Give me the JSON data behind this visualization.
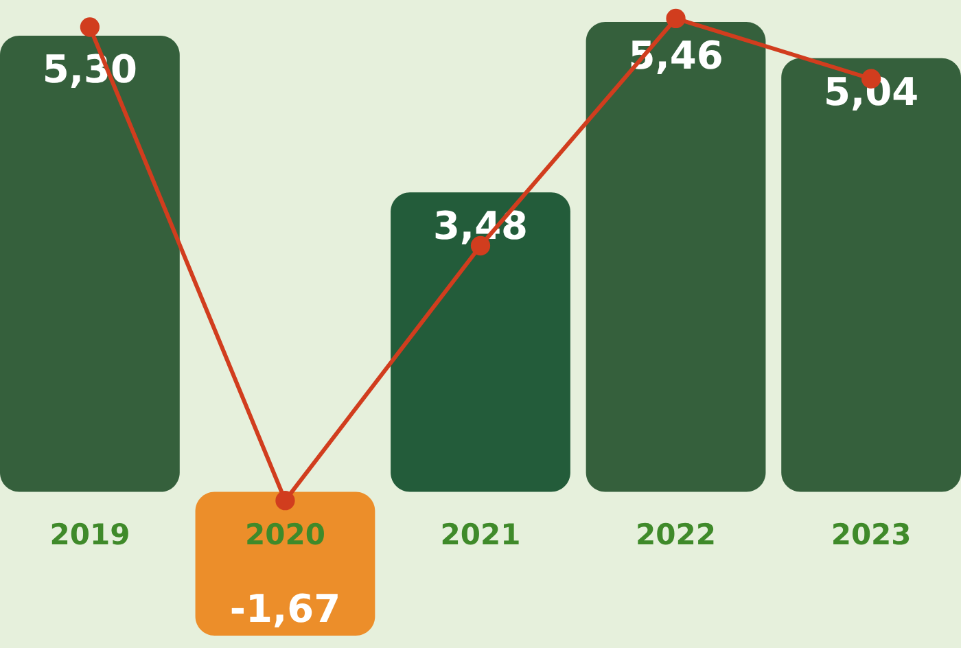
{
  "chart_data": {
    "type": "bar",
    "categories": [
      "2019",
      "2020",
      "2021",
      "2022",
      "2023"
    ],
    "series": [
      {
        "colors": [
          "#35603c",
          "#ec8e2a",
          "#235c3a",
          "#35603c",
          "#35603c"
        ],
        "values": [
          5.3,
          -1.67,
          3.48,
          5.46,
          5.04
        ],
        "value_labels": [
          "5,30",
          "-1,67",
          "3,48",
          "5,46",
          "5,04"
        ]
      },
      {
        "type": "line",
        "color": "#d13d1e",
        "values": [
          5.4,
          -0.1,
          2.86,
          5.5,
          4.8
        ],
        "marker": "circle"
      }
    ]
  }
}
